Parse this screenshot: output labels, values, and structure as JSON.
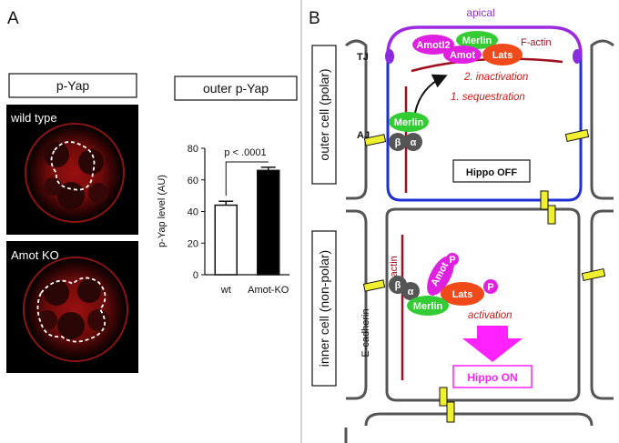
{
  "panels": {
    "a": "A",
    "b": "B"
  },
  "panel_a": {
    "pyap_title": "p-Yap",
    "image_wt_label": "wild type",
    "image_ko_label": "Amot KO",
    "chart_title": "outer p-Yap",
    "pvalue": "p < .0001"
  },
  "chart_data": {
    "type": "bar",
    "title": "outer p-Yap",
    "categories": [
      "wt",
      "Amot-KO"
    ],
    "values": [
      44,
      66
    ],
    "errors": [
      2.5,
      2
    ],
    "ylabel": "p-Yap level (AU)",
    "xlabel": "",
    "ylim": [
      0,
      80
    ],
    "yticks": [
      0,
      20,
      40,
      60,
      80
    ],
    "bar_fills": [
      "#ffffff",
      "#000000"
    ],
    "annotation": "p < .0001"
  },
  "panel_b": {
    "apical": "apical",
    "tj": "TJ",
    "aj": "AJ",
    "outer_cell_label": "outer cell (polar)",
    "inner_cell_label": "inner cell (non-polar)",
    "outer": {
      "amotl2": "Amotl2",
      "merlin_top": "Merlin",
      "amot": "Amot",
      "lats": "Lats",
      "factin": "F-actin",
      "inactivation": "2. inactivation",
      "sequestration": "1. sequestration",
      "merlin_junction": "Merlin",
      "beta": "β",
      "alpha": "α",
      "hippo": "Hippo OFF"
    },
    "inner": {
      "factin": "F-actin",
      "ecadherin": "E-cadherin",
      "beta": "β",
      "alpha": "α",
      "amot": "Amot",
      "p1": "P",
      "lats": "Lats",
      "p2": "P",
      "merlin": "Merlin",
      "activation": "activation",
      "hippo": "Hippo ON"
    },
    "colors": {
      "apical": "#9a2be0",
      "outer_membrane": "#1f2fd6",
      "merlin": "#33cc33",
      "amot": "#e020e0",
      "lats": "#f04a1a",
      "factin": "#a01020",
      "hippo_on": "#ff22ff",
      "junction": "#f0f030"
    }
  }
}
